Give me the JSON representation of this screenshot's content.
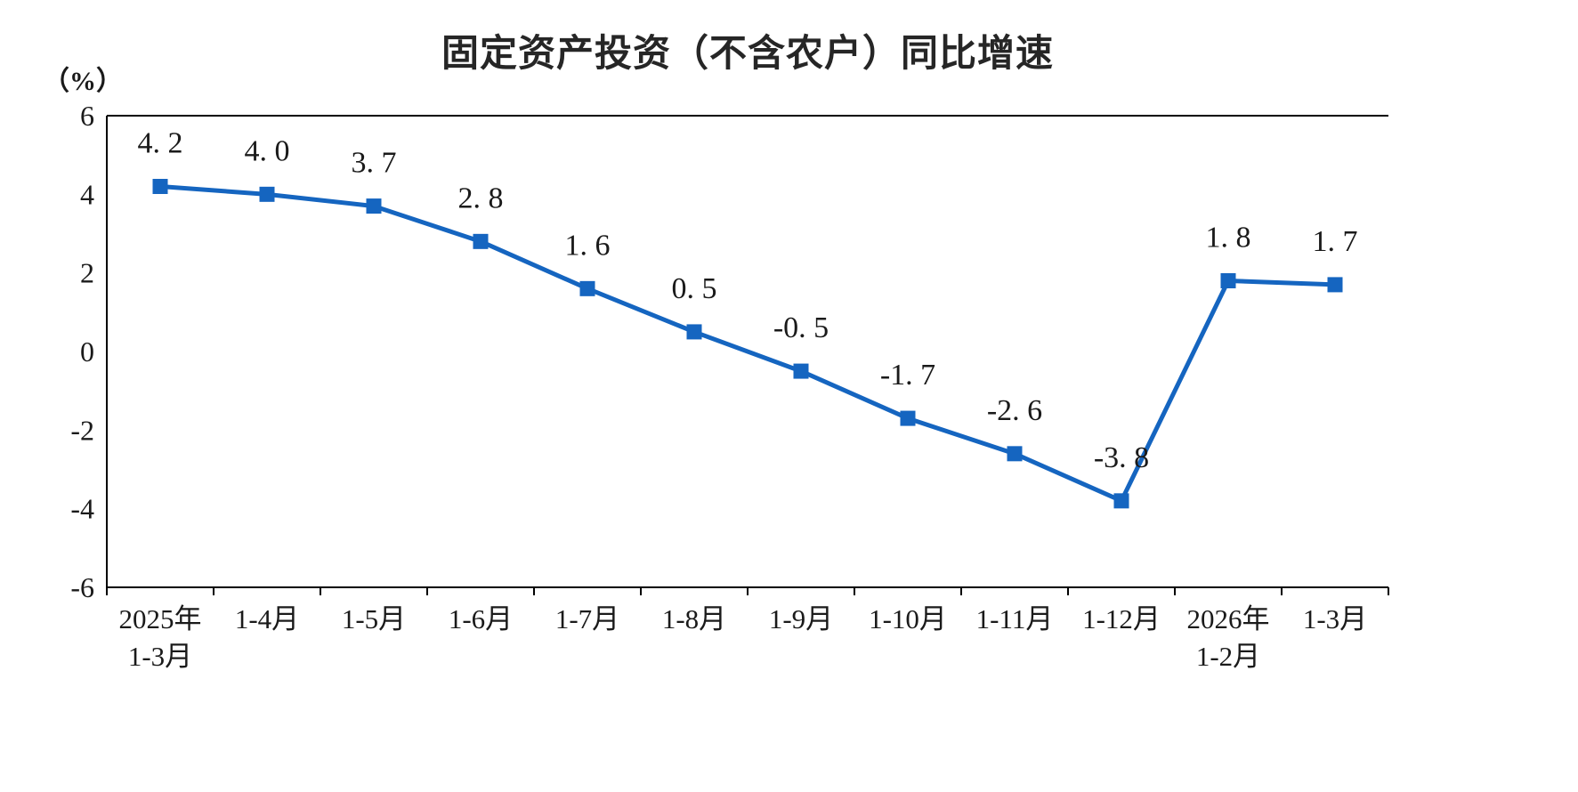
{
  "header": {
    "title": "固定资产投资（不含农户）同比增速",
    "unit_label": "（%）"
  },
  "chart_data": {
    "type": "line",
    "title": "固定资产投资（不含农户）同比增速",
    "ylabel": "（%）",
    "categories": [
      "2025年\n1-3月",
      "1-4月",
      "1-5月",
      "1-6月",
      "1-7月",
      "1-8月",
      "1-9月",
      "1-10月",
      "1-11月",
      "1-12月",
      "2026年\n1-2月",
      "1-3月"
    ],
    "values": [
      4.2,
      4.0,
      3.7,
      2.8,
      1.6,
      0.5,
      -0.5,
      -1.7,
      -2.6,
      -3.8,
      1.8,
      1.7
    ],
    "point_labels": [
      "4. 2",
      "4. 0",
      "3. 7",
      "2. 8",
      "1. 6",
      "0. 5",
      "-0. 5",
      "-1. 7",
      "-2. 6",
      "-3. 8",
      "1. 8",
      "1. 7"
    ],
    "ylim": [
      -6,
      6
    ],
    "yticks": [
      6,
      4,
      2,
      0,
      -2,
      -4,
      -6
    ],
    "line_color": "#1565C0",
    "axis_color": "#000000",
    "text_color": "#1a1a1a",
    "marker": "square",
    "grid": false,
    "legend": false
  }
}
